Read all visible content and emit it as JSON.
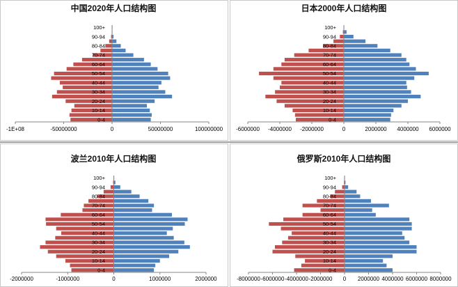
{
  "colors": {
    "male": "#c0504d",
    "female": "#4f81bd",
    "axis": "#868686"
  },
  "chart_data": [
    {
      "type": "bar",
      "orientation": "horizontal-population-pyramid",
      "title": "中国2020年人口结构图",
      "xlim": [
        -100000000,
        100000000
      ],
      "xticks": [
        -100000000,
        -50000000,
        0,
        50000000,
        100000000
      ],
      "xtick_labels": [
        "-1E+08",
        "-50000000",
        "0",
        "50000000",
        "100000000"
      ],
      "categories": [
        "0-4",
        "5-9",
        "10-14",
        "15-19",
        "20-24",
        "25-29",
        "30-34",
        "35-39",
        "40-44",
        "45-49",
        "50-54",
        "55-59",
        "60-64",
        "65-69",
        "70-74",
        "75-79",
        "80-84",
        "85-89",
        "90-94",
        "95-99",
        "100+"
      ],
      "category_labels_shown": [
        "0-4",
        "10-14",
        "20-24",
        "30-34",
        "40-44",
        "50-54",
        "60-64",
        "70-74",
        "80-84",
        "90-94",
        "100+"
      ],
      "series": [
        {
          "name": "male",
          "values": [
            -43000000,
            -44000000,
            -42000000,
            -39000000,
            -48000000,
            -62000000,
            -57000000,
            -51000000,
            -54000000,
            -63000000,
            -60000000,
            -47000000,
            -40000000,
            -31000000,
            -20000000,
            -12000000,
            -7000000,
            -3000000,
            -1000000,
            -200000,
            -20000
          ]
        },
        {
          "name": "female",
          "values": [
            40000000,
            41000000,
            39000000,
            36000000,
            44000000,
            62000000,
            55000000,
            48000000,
            51000000,
            60000000,
            58000000,
            47000000,
            40000000,
            33000000,
            22000000,
            14000000,
            9000000,
            4500000,
            1500000,
            350000,
            40000
          ]
        }
      ]
    },
    {
      "type": "bar",
      "orientation": "horizontal-population-pyramid",
      "title": "日本2000年人口结构图",
      "xlim": [
        -6000000,
        6000000
      ],
      "xticks": [
        -6000000,
        -4000000,
        -2000000,
        0,
        2000000,
        4000000,
        6000000
      ],
      "xtick_labels": [
        "-6000000",
        "-4000000",
        "-2000000",
        "0",
        "2000000",
        "4000000",
        "6000000"
      ],
      "categories": [
        "0-4",
        "5-9",
        "10-14",
        "15-19",
        "20-24",
        "25-29",
        "30-34",
        "35-39",
        "40-44",
        "45-49",
        "50-54",
        "55-59",
        "60-64",
        "65-69",
        "70-74",
        "75-79",
        "80-84",
        "85-89",
        "90-94",
        "95-99",
        "100+"
      ],
      "category_labels_shown": [
        "0-4",
        "10-14",
        "20-24",
        "30-34",
        "40-44",
        "50-54",
        "60-64",
        "70-74",
        "80-84",
        "90-94",
        "100+"
      ],
      "series": [
        {
          "name": "male",
          "values": [
            -3000000,
            -3050000,
            -3200000,
            -3700000,
            -4200000,
            -4900000,
            -4300000,
            -4000000,
            -3900000,
            -4400000,
            -5300000,
            -4400000,
            -3900000,
            -3700000,
            -3100000,
            -2200000,
            -1300000,
            -650000,
            -250000,
            -60000,
            -6000
          ]
        },
        {
          "name": "female",
          "values": [
            2900000,
            2950000,
            3100000,
            3600000,
            4000000,
            4800000,
            4200000,
            3950000,
            3900000,
            4400000,
            5300000,
            4500000,
            4100000,
            3900000,
            3600000,
            2900000,
            2100000,
            1350000,
            600000,
            170000,
            20000
          ]
        }
      ]
    },
    {
      "type": "bar",
      "orientation": "horizontal-population-pyramid",
      "title": "波兰2010年人口结构图",
      "xlim": [
        -2000000,
        2000000
      ],
      "xticks": [
        -2000000,
        -1000000,
        0,
        1000000,
        2000000
      ],
      "xtick_labels": [
        "-2000000",
        "-1000000",
        "0",
        "1000000",
        "2000000"
      ],
      "categories": [
        "0-4",
        "5-9",
        "10-14",
        "15-19",
        "20-24",
        "25-29",
        "30-34",
        "35-39",
        "40-44",
        "45-49",
        "50-54",
        "55-59",
        "60-64",
        "65-69",
        "70-74",
        "75-79",
        "80-84",
        "85-89",
        "90-94",
        "95-99",
        "100+"
      ],
      "category_labels_shown": [
        "0-4",
        "10-14",
        "20-24",
        "30-34",
        "40-44",
        "50-54",
        "60-64",
        "70-74",
        "80-84",
        "90-94",
        "100+"
      ],
      "series": [
        {
          "name": "male",
          "values": [
            -920000,
            -950000,
            -1050000,
            -1250000,
            -1430000,
            -1600000,
            -1480000,
            -1270000,
            -1140000,
            -1250000,
            -1470000,
            -1480000,
            -1150000,
            -680000,
            -650000,
            -550000,
            -360000,
            -220000,
            -70000,
            -15000,
            -1500
          ]
        },
        {
          "name": "female",
          "values": [
            870000,
            900000,
            1000000,
            1200000,
            1400000,
            1650000,
            1530000,
            1300000,
            1150000,
            1280000,
            1540000,
            1600000,
            1260000,
            830000,
            870000,
            750000,
            560000,
            380000,
            140000,
            35000,
            3500
          ]
        }
      ]
    },
    {
      "type": "bar",
      "orientation": "horizontal-population-pyramid",
      "title": "俄罗斯2010年人口结构图",
      "xlim": [
        -8000000,
        8000000
      ],
      "xticks": [
        -8000000,
        -6000000,
        -4000000,
        -2000000,
        0,
        2000000,
        4000000,
        6000000,
        8000000
      ],
      "xtick_labels": [
        "-8000000",
        "-6000000",
        "-4000000",
        "-2000000",
        "0",
        "2000000",
        "4000000",
        "6000000",
        "8000000"
      ],
      "categories": [
        "0-4",
        "5-9",
        "10-14",
        "15-19",
        "20-24",
        "25-29",
        "30-34",
        "35-39",
        "40-44",
        "45-49",
        "50-54",
        "55-59",
        "60-64",
        "65-69",
        "70-74",
        "75-79",
        "80-84",
        "85-89",
        "90-94",
        "95-99",
        "100+"
      ],
      "category_labels_shown": [
        "0-4",
        "10-14",
        "20-24",
        "30-34",
        "40-44",
        "50-54",
        "60-64",
        "70-74",
        "80-84",
        "90-94",
        "100+"
      ],
      "series": [
        {
          "name": "male",
          "values": [
            -4200000,
            -3600000,
            -3300000,
            -4100000,
            -6000000,
            -5800000,
            -5200000,
            -4700000,
            -4400000,
            -5300000,
            -6300000,
            -5100000,
            -3500000,
            -2000000,
            -3500000,
            -2300000,
            -1200000,
            -800000,
            -200000,
            -50000,
            -5000
          ]
        },
        {
          "name": "female",
          "values": [
            4000000,
            3500000,
            3200000,
            4000000,
            6000000,
            6000000,
            5400000,
            5000000,
            4800000,
            5600000,
            5600000,
            5400000,
            2600000,
            2300000,
            3700000,
            2200000,
            1300000,
            1000000,
            300000,
            80000,
            10000
          ]
        }
      ]
    }
  ]
}
